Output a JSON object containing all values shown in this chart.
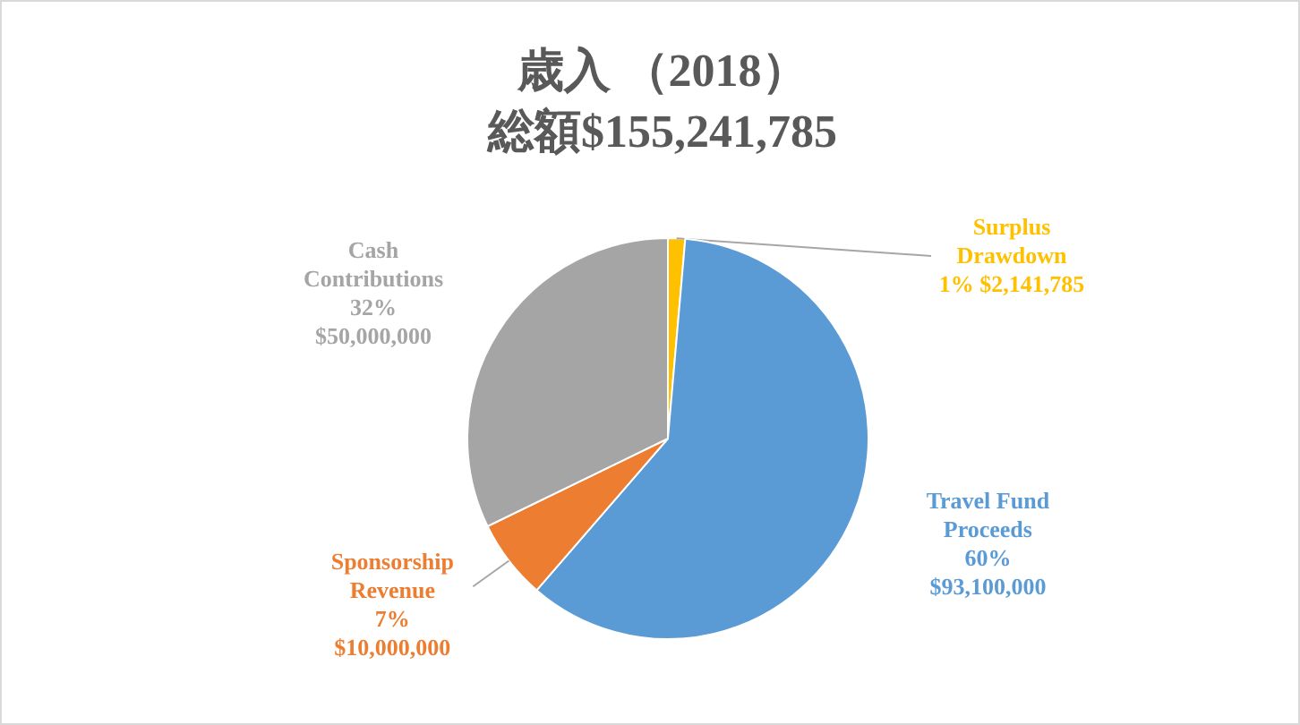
{
  "chart_data": {
    "type": "pie",
    "title": "歳入 （2018）",
    "subtitle": "総額$155,241,785",
    "categories": [
      "Surplus Drawdown",
      "Travel Fund Proceeds",
      "Sponsorship Revenue",
      "Cash Contributions"
    ],
    "values": [
      2141785,
      93100000,
      10000000,
      50000000
    ],
    "value_labels": [
      "1% $2,141,785",
      "60% $93,100,000",
      "7% $10,000,000",
      "32% $50,000,000"
    ],
    "colors": [
      "#ffc000",
      "#5b9bd5",
      "#ed7d31",
      "#a5a5a5"
    ],
    "legend": false
  }
}
